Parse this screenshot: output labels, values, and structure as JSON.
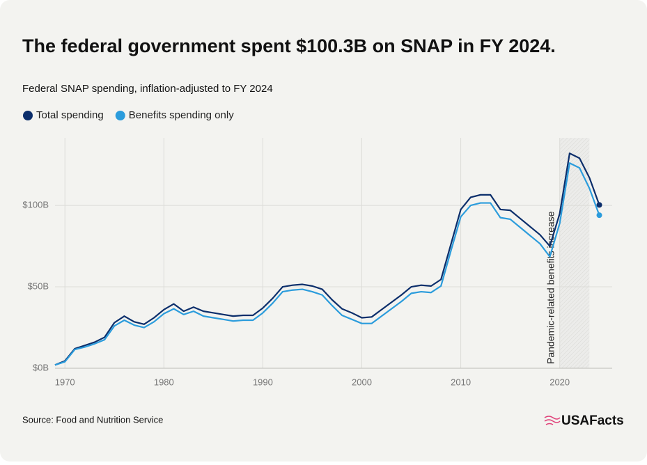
{
  "chart_data": {
    "type": "line",
    "title": "The federal government spent $100.3B on SNAP in FY 2024.",
    "subtitle": "Federal SNAP spending, inflation-adjusted to FY 2024",
    "source": "Source: Food and Nutrition Service",
    "logo": "USAFacts",
    "x": [
      1969,
      1970,
      1971,
      1972,
      1973,
      1974,
      1975,
      1976,
      1977,
      1978,
      1979,
      1980,
      1981,
      1982,
      1983,
      1984,
      1985,
      1986,
      1987,
      1988,
      1989,
      1990,
      1991,
      1992,
      1993,
      1994,
      1995,
      1996,
      1997,
      1998,
      1999,
      2000,
      2001,
      2002,
      2003,
      2004,
      2005,
      2006,
      2007,
      2008,
      2009,
      2010,
      2011,
      2012,
      2013,
      2014,
      2015,
      2016,
      2017,
      2018,
      2019,
      2020,
      2021,
      2022,
      2023,
      2024
    ],
    "series": [
      {
        "name": "Total spending",
        "color": "#0b2e6b",
        "values": [
          2,
          4.5,
          12,
          14,
          16,
          19,
          28,
          32,
          28.5,
          27,
          31,
          36,
          39.5,
          35,
          37.5,
          35,
          34,
          33,
          32,
          32.5,
          32.5,
          37,
          43,
          50,
          51,
          51.5,
          50.5,
          48.5,
          42,
          36.5,
          34,
          31,
          31.5,
          36,
          40.5,
          45,
          50,
          51,
          50.5,
          54.5,
          76,
          97.5,
          105,
          106.5,
          106.5,
          97.5,
          97,
          92,
          87,
          82,
          75,
          95,
          132,
          129,
          117,
          100.3
        ]
      },
      {
        "name": "Benefits spending only",
        "color": "#2b9cdc",
        "values": [
          2,
          4,
          11.5,
          13,
          15,
          17.5,
          26,
          29.5,
          26.5,
          25,
          28.5,
          33.5,
          36.5,
          33,
          35,
          32,
          31,
          30,
          29,
          29.5,
          29.5,
          34,
          40,
          47,
          48,
          48.5,
          47,
          45,
          38.5,
          32.5,
          30,
          27.5,
          27.5,
          32,
          36.5,
          41,
          46,
          47,
          46.5,
          50.5,
          72,
          93,
          100,
          101.5,
          101.5,
          92.5,
          91.5,
          86.5,
          81.5,
          76.5,
          68.5,
          89,
          126,
          123,
          110.5,
          94
        ]
      }
    ],
    "annotation": {
      "text": "Pandemic-related benefits increase",
      "x_range": [
        2020,
        2023
      ]
    },
    "xlim": [
      1969,
      2025.3
    ],
    "xticks": [
      1970,
      1980,
      1990,
      2000,
      2010,
      2020
    ],
    "ylim": [
      0,
      141.5
    ],
    "yticks": [
      {
        "value": 0,
        "label": "$0B"
      },
      {
        "value": 50,
        "label": "$50B"
      },
      {
        "value": 100,
        "label": "$100B"
      }
    ],
    "grid": true
  }
}
